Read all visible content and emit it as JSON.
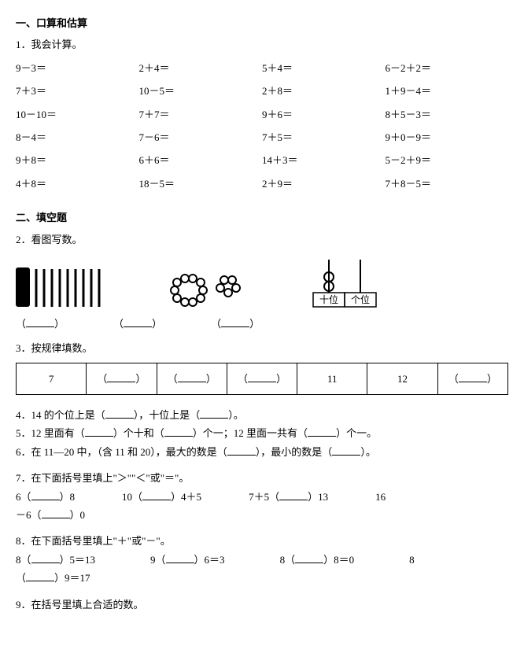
{
  "s1": {
    "title": "一、口算和估算",
    "q1": {
      "label": "1．我会计算。",
      "rows": [
        [
          "9－3＝",
          "2＋4＝",
          "5＋4＝",
          "6－2＋2＝"
        ],
        [
          "7＋3＝",
          "10－5＝",
          "2＋8＝",
          "1＋9－4＝"
        ],
        [
          "10－10＝",
          "7＋7＝",
          "9＋6＝",
          "8＋5－3＝"
        ],
        [
          "8－4＝",
          "7－6＝",
          "7＋5＝",
          "9＋0－9＝"
        ],
        [
          "9＋8＝",
          "6＋6＝",
          "14＋3＝",
          "5－2＋9＝"
        ],
        [
          "4＋8＝",
          "18－5＝",
          "2＋9＝",
          "7＋8－5＝"
        ]
      ]
    }
  },
  "s2": {
    "title": "二、填空题",
    "q2": {
      "label": "2．看图写数。",
      "tens_label": "十位",
      "ones_label": "个位"
    },
    "q3": {
      "label": "3．按规律填数。",
      "cells": [
        "7",
        "",
        "",
        "",
        "11",
        "12",
        ""
      ]
    },
    "q4": {
      "pre": "4．14 的个位上是（",
      "mid": "），十位上是（",
      "post": "）。"
    },
    "q5": {
      "a": "5．12 里面有（",
      "b": "）个十和（",
      "c": "）个一；12 里面一共有（",
      "d": "）个一。"
    },
    "q6": {
      "a": "6．在 11—20 中，（含 11 和 20），最大的数是（",
      "b": "），最小的数是（",
      "c": "）。"
    },
    "q7": {
      "label": "7．在下面括号里填上\"＞\"\"＜\"或\"＝\"。",
      "items": [
        {
          "l": "6（",
          "r": "）8"
        },
        {
          "l": "10（",
          "r": "）4＋5"
        },
        {
          "l": "7＋5（",
          "r": "）13"
        },
        {
          "l": "16"
        }
      ],
      "line2": {
        "l": "－6（",
        "r": "）0"
      }
    },
    "q8": {
      "label": "8．在下面括号里填上\"＋\"或\"－\"。",
      "items": [
        {
          "l": "8（",
          "r": "）5＝13"
        },
        {
          "l": "9（",
          "r": "）6＝3"
        },
        {
          "l": "8（",
          "r": "）8＝0"
        },
        {
          "l": "8"
        }
      ],
      "line2": {
        "l": "（",
        "r": "）9＝17"
      }
    },
    "q9": {
      "label": "9．在括号里填上合适的数。"
    }
  }
}
